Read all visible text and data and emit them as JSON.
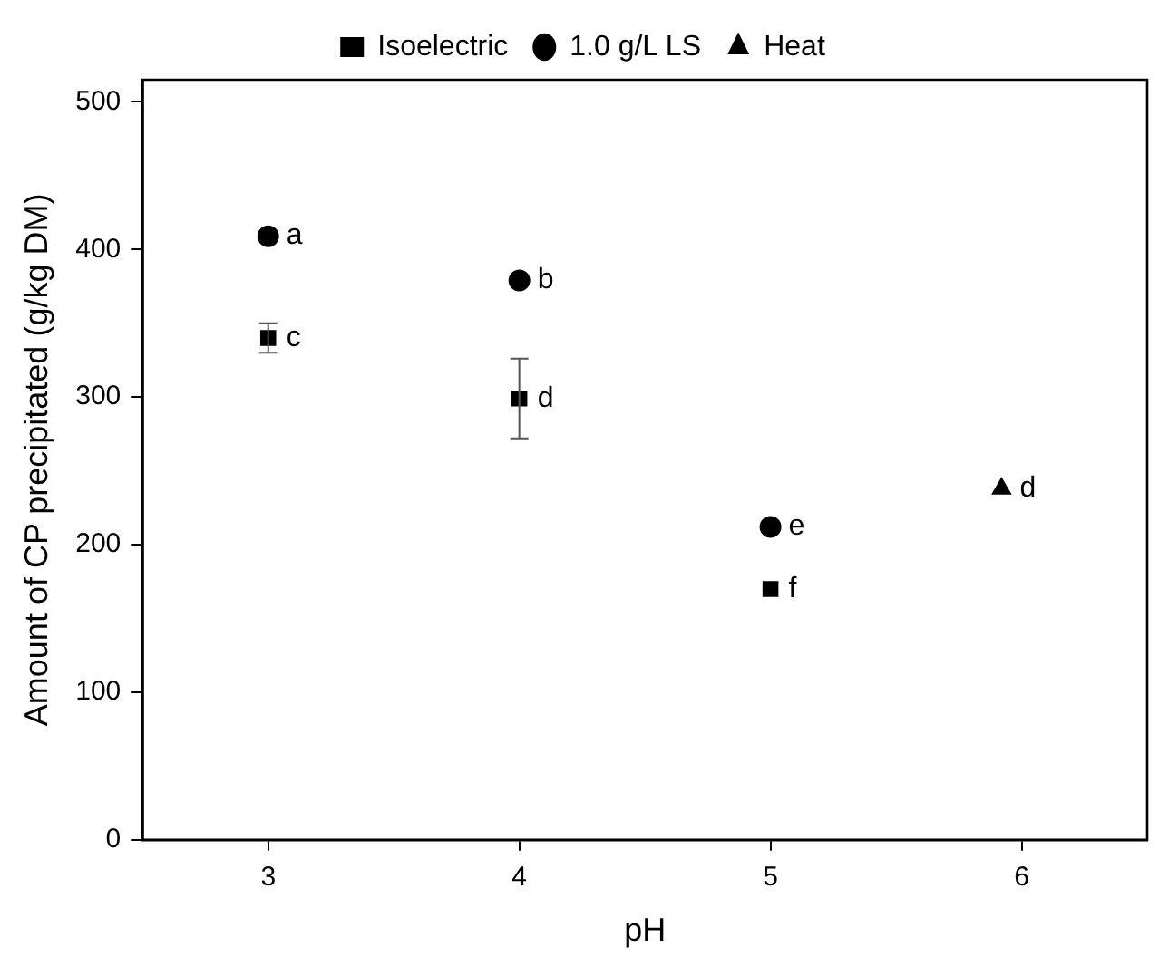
{
  "chart_data": {
    "type": "scatter",
    "xlabel": "pH",
    "ylabel": "Amount of CP precipitated (g/kg DM)",
    "xlim": [
      2.5,
      6.5
    ],
    "xticks": [
      3,
      4,
      5,
      6
    ],
    "ylim": [
      0,
      515
    ],
    "yticks": [
      0,
      100,
      200,
      300,
      400,
      500
    ],
    "grid": false,
    "legend": "top",
    "series": [
      {
        "name": "Isoelectric",
        "color": "#000000",
        "marker": "square",
        "x": [
          3,
          4,
          5
        ],
        "values": [
          340,
          299,
          170
        ],
        "errors": [
          10,
          27,
          null
        ]
      },
      {
        "name": "1.0 g/L LS",
        "color": "#000000",
        "marker": "circle",
        "x": [
          3,
          4,
          5
        ],
        "values": [
          409,
          379,
          212
        ]
      },
      {
        "name": "Heat",
        "color": "#000000",
        "marker": "triangle",
        "x": [
          5.92
        ],
        "values": [
          238
        ]
      }
    ],
    "annotations": [
      {
        "text": "a",
        "x": 3,
        "y": 409
      },
      {
        "text": "c",
        "x": 3,
        "y": 340
      },
      {
        "text": "b",
        "x": 4,
        "y": 379
      },
      {
        "text": "d",
        "x": 4,
        "y": 299
      },
      {
        "text": "e",
        "x": 5,
        "y": 212
      },
      {
        "text": "f",
        "x": 5,
        "y": 170
      },
      {
        "text": "d",
        "x": 5.92,
        "y": 238
      }
    ]
  }
}
